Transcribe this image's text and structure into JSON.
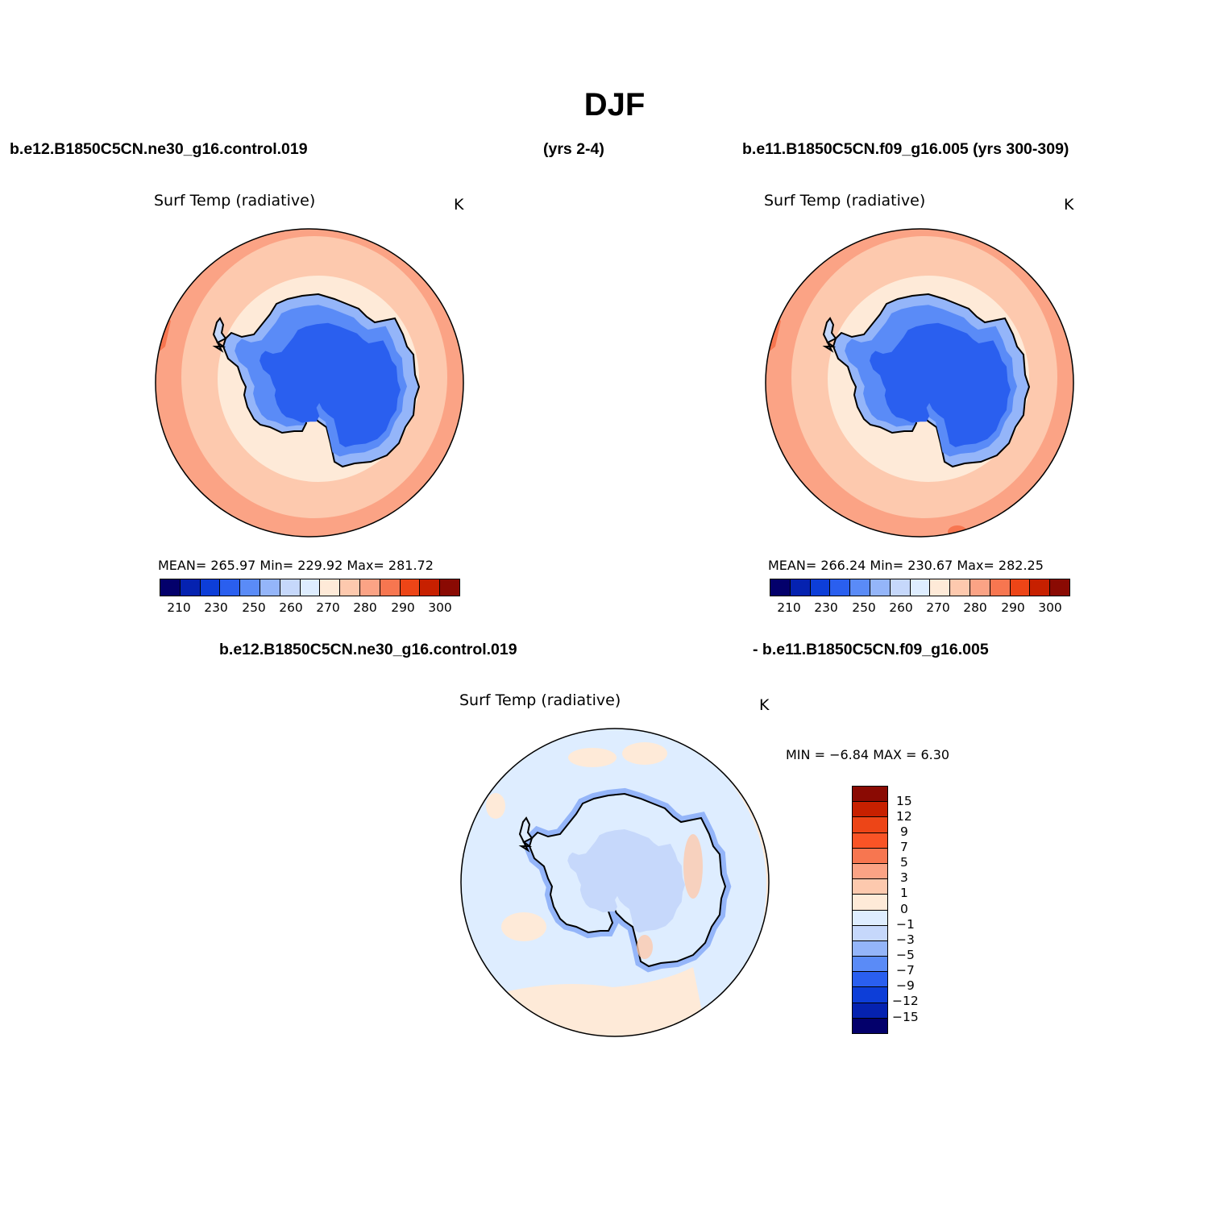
{
  "title": "DJF",
  "case1": "b.e12.B1850C5CN.ne30_g16.control.019",
  "case1_years": "(yrs 2-4)",
  "case2": "b.e11.B1850C5CN.f09_g16.005 (yrs 300-309)",
  "diff_case1": "b.e12.B1850C5CN.ne30_g16.control.019",
  "diff_case2": "- b.e11.B1850C5CN.f09_g16.005",
  "panels": [
    {
      "variable": "Surf Temp (radiative)",
      "units": "K",
      "stats": "MEAN= 265.97   Min= 229.92   Max= 281.72"
    },
    {
      "variable": "Surf Temp (radiative)",
      "units": "K",
      "stats": "MEAN= 266.24   Min= 230.67   Max= 282.25"
    },
    {
      "variable": "Surf Temp (radiative)",
      "units": "K",
      "stats": "MIN =   −6.84  MAX =    6.30"
    }
  ],
  "abs_colorbar": {
    "labels": [
      "210",
      "230",
      "250",
      "260",
      "270",
      "280",
      "290",
      "300"
    ],
    "colors": [
      "#03006b",
      "#0522b0",
      "#0d3ed8",
      "#2a5fef",
      "#5a8bf7",
      "#94b5f9",
      "#c6d8fb",
      "#deedff",
      "#feead8",
      "#fdc9ae",
      "#fba385",
      "#f77650",
      "#ed4517",
      "#c72000",
      "#8a0a03"
    ]
  },
  "diff_colorbar": {
    "labels": [
      "15",
      "12",
      "9",
      "7",
      "5",
      "3",
      "1",
      "0",
      "−1",
      "−3",
      "−5",
      "−7",
      "−9",
      "−12",
      "−15"
    ],
    "colors": [
      "#8a0a03",
      "#c72000",
      "#ed4517",
      "#f95426",
      "#f77650",
      "#fba385",
      "#fdc9ae",
      "#feead8",
      "#deedff",
      "#c6d8fb",
      "#94b5f9",
      "#5a8bf7",
      "#2a5fef",
      "#0d3ed8",
      "#0522b0",
      "#03006b"
    ]
  }
}
